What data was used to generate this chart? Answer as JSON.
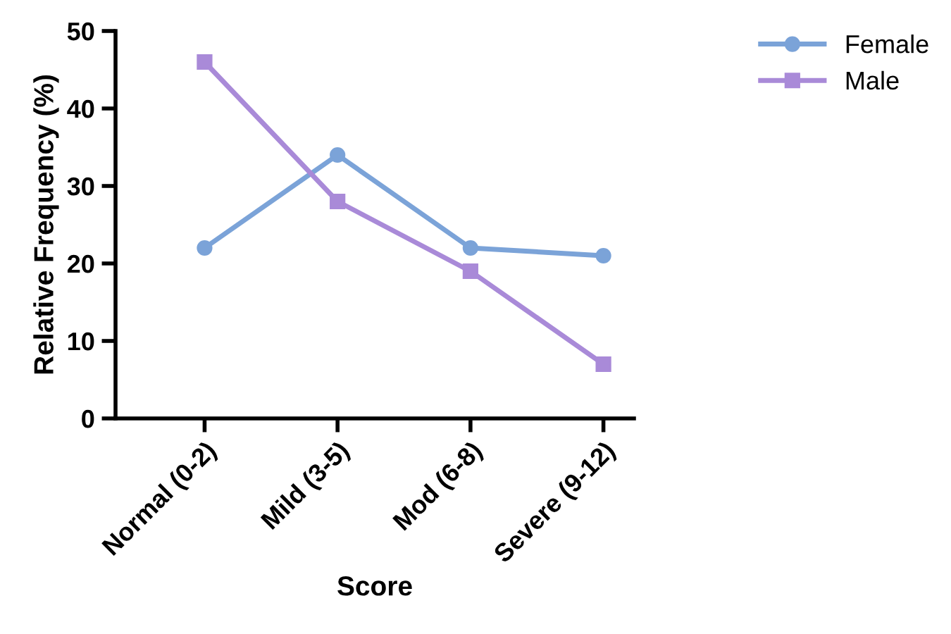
{
  "chart_data": {
    "type": "line",
    "xlabel": "Score",
    "ylabel": "Relative Frequency (%)",
    "categories": [
      "Normal (0-2)",
      "Mild (3-5)",
      "Mod (6-8)",
      "Severe (9-12)"
    ],
    "series": [
      {
        "name": "Female",
        "color": "#7ba3d8",
        "marker": "circle",
        "values": [
          22,
          34,
          22,
          21
        ]
      },
      {
        "name": "Male",
        "color": "#a98ad8",
        "marker": "square",
        "values": [
          46,
          28,
          19,
          7
        ]
      }
    ],
    "ylim": [
      0,
      50
    ],
    "yticks": [
      0,
      10,
      20,
      30,
      40,
      50
    ],
    "grid": false,
    "legend": "top right",
    "line_style": "solid"
  }
}
